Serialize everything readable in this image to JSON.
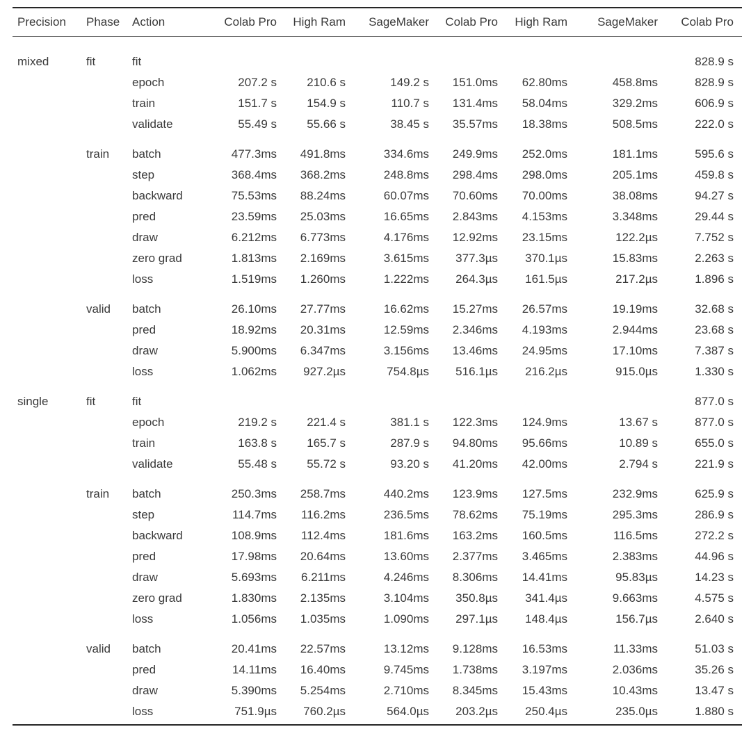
{
  "chart_data": {
    "type": "table",
    "columns": [
      "Precision",
      "Phase",
      "Action",
      "Colab Pro",
      "High Ram",
      "SageMaker",
      "Colab Pro",
      "High Ram",
      "SageMaker",
      "Colab Pro"
    ],
    "groups": [
      {
        "precision": "mixed",
        "phase": "fit",
        "rows": [
          {
            "action": "fit",
            "values": [
              "",
              "",
              "",
              "",
              "",
              "",
              "828.9 s"
            ]
          },
          {
            "action": "epoch",
            "values": [
              "207.2 s",
              "210.6 s",
              "149.2 s",
              "151.0ms",
              "62.80ms",
              "458.8ms",
              "828.9 s"
            ]
          },
          {
            "action": "train",
            "values": [
              "151.7 s",
              "154.9 s",
              "110.7 s",
              "131.4ms",
              "58.04ms",
              "329.2ms",
              "606.9 s"
            ]
          },
          {
            "action": "validate",
            "values": [
              "55.49 s",
              "55.66 s",
              "38.45 s",
              "35.57ms",
              "18.38ms",
              "508.5ms",
              "222.0 s"
            ]
          }
        ]
      },
      {
        "precision": "",
        "phase": "train",
        "rows": [
          {
            "action": "batch",
            "values": [
              "477.3ms",
              "491.8ms",
              "334.6ms",
              "249.9ms",
              "252.0ms",
              "181.1ms",
              "595.6 s"
            ]
          },
          {
            "action": "step",
            "values": [
              "368.4ms",
              "368.2ms",
              "248.8ms",
              "298.4ms",
              "298.0ms",
              "205.1ms",
              "459.8 s"
            ]
          },
          {
            "action": "backward",
            "values": [
              "75.53ms",
              "88.24ms",
              "60.07ms",
              "70.60ms",
              "70.00ms",
              "38.08ms",
              "94.27 s"
            ]
          },
          {
            "action": "pred",
            "values": [
              "23.59ms",
              "25.03ms",
              "16.65ms",
              "2.843ms",
              "4.153ms",
              "3.348ms",
              "29.44 s"
            ]
          },
          {
            "action": "draw",
            "values": [
              "6.212ms",
              "6.773ms",
              "4.176ms",
              "12.92ms",
              "23.15ms",
              "122.2µs",
              "7.752 s"
            ]
          },
          {
            "action": "zero grad",
            "values": [
              "1.813ms",
              "2.169ms",
              "3.615ms",
              "377.3µs",
              "370.1µs",
              "15.83ms",
              "2.263 s"
            ]
          },
          {
            "action": "loss",
            "values": [
              "1.519ms",
              "1.260ms",
              "1.222ms",
              "264.3µs",
              "161.5µs",
              "217.2µs",
              "1.896 s"
            ]
          }
        ]
      },
      {
        "precision": "",
        "phase": "valid",
        "rows": [
          {
            "action": "batch",
            "values": [
              "26.10ms",
              "27.77ms",
              "16.62ms",
              "15.27ms",
              "26.57ms",
              "19.19ms",
              "32.68 s"
            ]
          },
          {
            "action": "pred",
            "values": [
              "18.92ms",
              "20.31ms",
              "12.59ms",
              "2.346ms",
              "4.193ms",
              "2.944ms",
              "23.68 s"
            ]
          },
          {
            "action": "draw",
            "values": [
              "5.900ms",
              "6.347ms",
              "3.156ms",
              "13.46ms",
              "24.95ms",
              "17.10ms",
              "7.387 s"
            ]
          },
          {
            "action": "loss",
            "values": [
              "1.062ms",
              "927.2µs",
              "754.8µs",
              "516.1µs",
              "216.2µs",
              "915.0µs",
              "1.330 s"
            ]
          }
        ]
      },
      {
        "precision": "single",
        "phase": "fit",
        "rows": [
          {
            "action": "fit",
            "values": [
              "",
              "",
              "",
              "",
              "",
              "",
              "877.0 s"
            ]
          },
          {
            "action": "epoch",
            "values": [
              "219.2 s",
              "221.4 s",
              "381.1 s",
              "122.3ms",
              "124.9ms",
              "13.67 s",
              "877.0 s"
            ]
          },
          {
            "action": "train",
            "values": [
              "163.8 s",
              "165.7 s",
              "287.9 s",
              "94.80ms",
              "95.66ms",
              "10.89 s",
              "655.0 s"
            ]
          },
          {
            "action": "validate",
            "values": [
              "55.48 s",
              "55.72 s",
              "93.20 s",
              "41.20ms",
              "42.00ms",
              "2.794 s",
              "221.9 s"
            ]
          }
        ]
      },
      {
        "precision": "",
        "phase": "train",
        "rows": [
          {
            "action": "batch",
            "values": [
              "250.3ms",
              "258.7ms",
              "440.2ms",
              "123.9ms",
              "127.5ms",
              "232.9ms",
              "625.9 s"
            ]
          },
          {
            "action": "step",
            "values": [
              "114.7ms",
              "116.2ms",
              "236.5ms",
              "78.62ms",
              "75.19ms",
              "295.3ms",
              "286.9 s"
            ]
          },
          {
            "action": "backward",
            "values": [
              "108.9ms",
              "112.4ms",
              "181.6ms",
              "163.2ms",
              "160.5ms",
              "116.5ms",
              "272.2 s"
            ]
          },
          {
            "action": "pred",
            "values": [
              "17.98ms",
              "20.64ms",
              "13.60ms",
              "2.377ms",
              "3.465ms",
              "2.383ms",
              "44.96 s"
            ]
          },
          {
            "action": "draw",
            "values": [
              "5.693ms",
              "6.211ms",
              "4.246ms",
              "8.306ms",
              "14.41ms",
              "95.83µs",
              "14.23 s"
            ]
          },
          {
            "action": "zero grad",
            "values": [
              "1.830ms",
              "2.135ms",
              "3.104ms",
              "350.8µs",
              "341.4µs",
              "9.663ms",
              "4.575 s"
            ]
          },
          {
            "action": "loss",
            "values": [
              "1.056ms",
              "1.035ms",
              "1.090ms",
              "297.1µs",
              "148.4µs",
              "156.7µs",
              "2.640 s"
            ]
          }
        ]
      },
      {
        "precision": "",
        "phase": "valid",
        "rows": [
          {
            "action": "batch",
            "values": [
              "20.41ms",
              "22.57ms",
              "13.12ms",
              "9.128ms",
              "16.53ms",
              "11.33ms",
              "51.03 s"
            ]
          },
          {
            "action": "pred",
            "values": [
              "14.11ms",
              "16.40ms",
              "9.745ms",
              "1.738ms",
              "3.197ms",
              "2.036ms",
              "35.26 s"
            ]
          },
          {
            "action": "draw",
            "values": [
              "5.390ms",
              "5.254ms",
              "2.710ms",
              "8.345ms",
              "15.43ms",
              "10.43ms",
              "13.47 s"
            ]
          },
          {
            "action": "loss",
            "values": [
              "751.9µs",
              "760.2µs",
              "564.0µs",
              "203.2µs",
              "250.4µs",
              "235.0µs",
              "1.880 s"
            ]
          }
        ]
      }
    ]
  }
}
